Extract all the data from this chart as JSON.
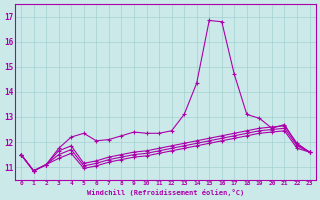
{
  "xlabel": "Windchill (Refroidissement éolien,°C)",
  "background_color": "#cce9e9",
  "line_color": "#aa00aa",
  "grid_color": "#aaccaa",
  "xlim": [
    -0.5,
    23.5
  ],
  "ylim": [
    10.5,
    17.5
  ],
  "yticks": [
    11,
    12,
    13,
    14,
    15,
    16,
    17
  ],
  "xticks": [
    0,
    1,
    2,
    3,
    4,
    5,
    6,
    7,
    8,
    9,
    10,
    11,
    12,
    13,
    14,
    15,
    16,
    17,
    18,
    19,
    20,
    21,
    22,
    23
  ],
  "x": [
    0,
    1,
    2,
    3,
    4,
    5,
    6,
    7,
    8,
    9,
    10,
    11,
    12,
    13,
    14,
    15,
    16,
    17,
    18,
    19,
    20,
    21,
    22,
    23
  ],
  "line1": [
    11.5,
    10.85,
    11.1,
    11.75,
    12.2,
    12.35,
    12.05,
    12.1,
    12.25,
    12.4,
    12.35,
    12.35,
    12.45,
    13.1,
    14.35,
    16.85,
    16.8,
    14.7,
    13.1,
    12.95,
    12.55,
    12.7,
    11.9,
    11.6
  ],
  "line2": [
    11.5,
    10.85,
    11.1,
    11.65,
    11.85,
    11.15,
    11.25,
    11.4,
    11.5,
    11.6,
    11.65,
    11.75,
    11.85,
    11.95,
    12.05,
    12.15,
    12.25,
    12.35,
    12.45,
    12.55,
    12.6,
    12.65,
    11.95,
    11.6
  ],
  "line3": [
    11.5,
    10.85,
    11.1,
    11.5,
    11.7,
    11.05,
    11.15,
    11.3,
    11.4,
    11.5,
    11.55,
    11.65,
    11.75,
    11.85,
    11.95,
    12.05,
    12.15,
    12.25,
    12.35,
    12.45,
    12.5,
    12.55,
    11.85,
    11.6
  ],
  "line4": [
    11.5,
    10.85,
    11.1,
    11.35,
    11.55,
    10.95,
    11.05,
    11.2,
    11.3,
    11.4,
    11.45,
    11.55,
    11.65,
    11.75,
    11.85,
    11.95,
    12.05,
    12.15,
    12.25,
    12.35,
    12.4,
    12.45,
    11.75,
    11.6
  ]
}
